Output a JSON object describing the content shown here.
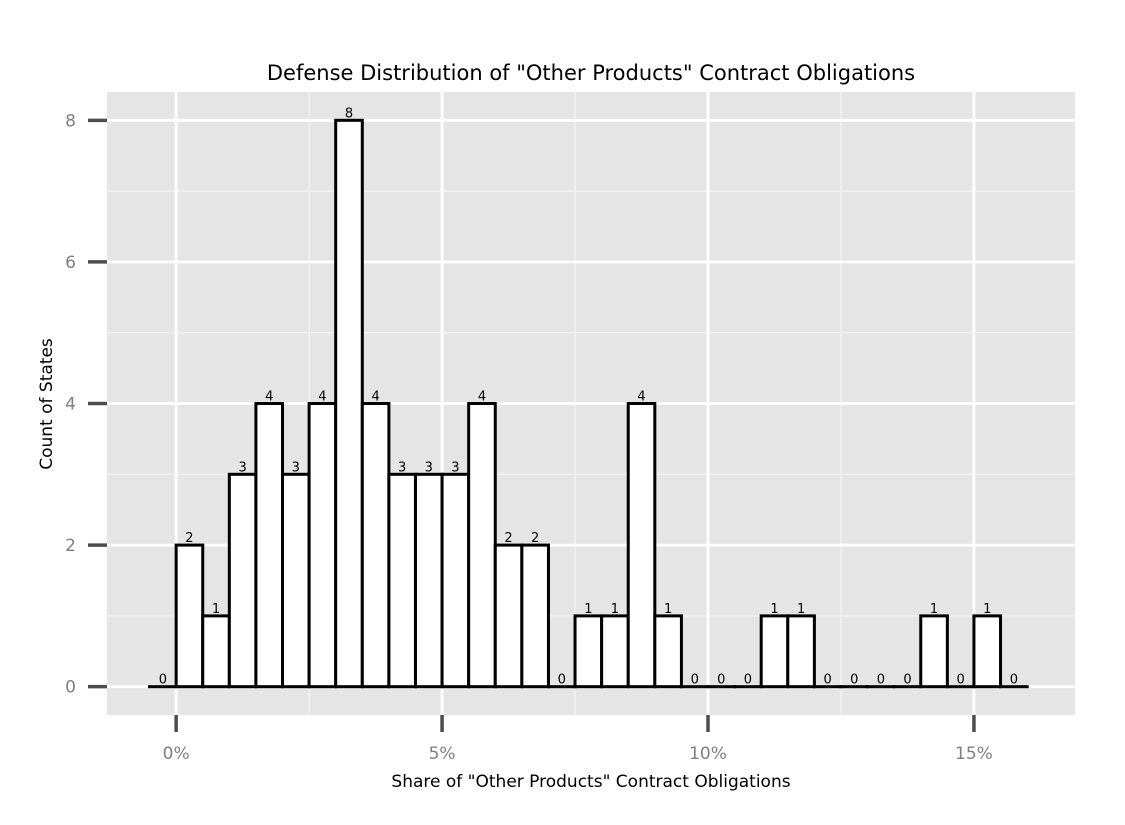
{
  "chart_data": {
    "type": "bar",
    "title": "Defense Distribution of \"Other Products\" Contract Obligations",
    "xlabel": "Share of \"Other Products\" Contract Obligations",
    "ylabel": "Count of States",
    "x_unit": "percent",
    "bin_width": 0.5,
    "bin_centers": [
      -0.25,
      0.25,
      0.75,
      1.25,
      1.75,
      2.25,
      2.75,
      3.25,
      3.75,
      4.25,
      4.75,
      5.25,
      5.75,
      6.25,
      6.75,
      7.25,
      7.75,
      8.25,
      8.75,
      9.25,
      9.75,
      10.25,
      10.75,
      11.25,
      11.75,
      12.25,
      12.75,
      13.25,
      13.75,
      14.25,
      14.75,
      15.25,
      15.75
    ],
    "values": [
      0,
      2,
      1,
      3,
      4,
      3,
      4,
      8,
      4,
      3,
      3,
      3,
      4,
      2,
      2,
      0,
      1,
      1,
      4,
      1,
      0,
      0,
      0,
      1,
      1,
      0,
      0,
      0,
      0,
      1,
      0,
      1,
      0
    ],
    "xlim": [
      -1.3,
      16.9
    ],
    "ylim": [
      -0.4,
      8.4
    ],
    "x_ticks": [
      0,
      5,
      10,
      15
    ],
    "x_tick_labels": [
      "0%",
      "5%",
      "10%",
      "15%"
    ],
    "y_ticks": [
      0,
      2,
      4,
      6,
      8
    ],
    "y_tick_labels": [
      "0",
      "2",
      "4",
      "6",
      "8"
    ],
    "grid": true,
    "colors": {
      "panel_background": "#e5e5e5",
      "grid_major": "#ffffff",
      "grid_minor": "#f2f2f2",
      "bar_fill": "#ffffff",
      "bar_outline": "#000000",
      "tick_label": "#7f7f7f",
      "tick_mark": "#4d4d4d"
    }
  }
}
